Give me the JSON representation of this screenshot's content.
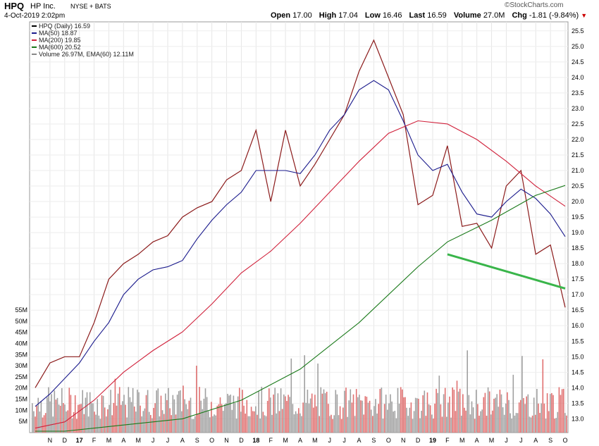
{
  "header": {
    "symbol": "HPQ",
    "company": "HP Inc.",
    "exchange": "NYSE + BATS",
    "datetime": "4-Oct-2019 2:02pm",
    "open_label": "Open",
    "open": "17.00",
    "high_label": "High",
    "high": "17.04",
    "low_label": "Low",
    "low": "16.46",
    "last_label": "Last",
    "last": "16.59",
    "volume_label": "Volume",
    "volume": "27.0M",
    "chg_label": "Chg",
    "chg": "-1.81 (-9.84%)",
    "brand": "©StockCharts.com"
  },
  "legend": [
    {
      "text": "HPQ (Daily) 16.59",
      "color": "#000000"
    },
    {
      "text": "MA(50) 18.87",
      "color": "#1a1a8c"
    },
    {
      "text": "MA(200) 19.85",
      "color": "#d0203a"
    },
    {
      "text": "MA(600) 20.52",
      "color": "#1a7a1a"
    },
    {
      "text": "Volume 26.97M, EMA(60) 12.11M",
      "color": "#888888"
    }
  ],
  "colors": {
    "price": "#8b1a1a",
    "ma50": "#1a1a8c",
    "ma200": "#d0203a",
    "ma600": "#1a7a1a",
    "trend": "#39b54a",
    "vol": "#a0a0a0",
    "vol_down": "#e07070"
  },
  "chart_data": {
    "type": "line",
    "price_axis": {
      "min": 12.6,
      "max": 25.7,
      "ticks": [
        "13.0",
        "13.5",
        "14.0",
        "14.5",
        "15.0",
        "15.5",
        "16.0",
        "16.5",
        "17.0",
        "17.5",
        "18.0",
        "18.5",
        "19.0",
        "19.5",
        "20.0",
        "20.5",
        "21.0",
        "21.5",
        "22.0",
        "22.5",
        "23.0",
        "23.5",
        "24.0",
        "24.5",
        "25.0",
        "25.5"
      ]
    },
    "volume_axis": {
      "min": 0,
      "max": 55,
      "ticks": [
        "5M",
        "10M",
        "15M",
        "20M",
        "25M",
        "30M",
        "35M",
        "40M",
        "45M",
        "50M",
        "55M"
      ]
    },
    "x_labels": [
      "N",
      "D",
      "17",
      "F",
      "M",
      "A",
      "M",
      "J",
      "J",
      "A",
      "S",
      "O",
      "N",
      "D",
      "18",
      "F",
      "M",
      "A",
      "M",
      "J",
      "J",
      "A",
      "S",
      "O",
      "N",
      "D",
      "19",
      "F",
      "M",
      "A",
      "M",
      "J",
      "J",
      "A",
      "S",
      "O"
    ],
    "bold_labels": [
      "17",
      "18",
      "19"
    ],
    "x_dates": [
      "2016-11",
      "2016-12",
      "2017-01",
      "2017-02",
      "2017-03",
      "2017-04",
      "2017-05",
      "2017-06",
      "2017-07",
      "2017-08",
      "2017-09",
      "2017-10",
      "2017-11",
      "2017-12",
      "2018-01",
      "2018-02",
      "2018-03",
      "2018-04",
      "2018-05",
      "2018-06",
      "2018-07",
      "2018-08",
      "2018-09",
      "2018-10",
      "2018-11",
      "2018-12",
      "2019-01",
      "2019-02",
      "2019-03",
      "2019-04",
      "2019-05",
      "2019-06",
      "2019-07",
      "2019-08",
      "2019-09",
      "2019-10"
    ],
    "series": [
      {
        "name": "HPQ (Daily)",
        "key": "price",
        "points": [
          [
            "2016-10",
            14.0
          ],
          [
            "2016-11",
            14.8
          ],
          [
            "2016-12",
            15.0
          ],
          [
            "2017-01",
            15.0
          ],
          [
            "2017-02",
            16.1
          ],
          [
            "2017-03",
            17.5
          ],
          [
            "2017-04",
            18.0
          ],
          [
            "2017-05",
            18.3
          ],
          [
            "2017-06",
            18.7
          ],
          [
            "2017-07",
            18.9
          ],
          [
            "2017-08",
            19.5
          ],
          [
            "2017-09",
            19.8
          ],
          [
            "2017-10",
            20.0
          ],
          [
            "2017-11",
            20.7
          ],
          [
            "2017-12",
            21.0
          ],
          [
            "2018-01",
            22.3
          ],
          [
            "2018-02",
            20.0
          ],
          [
            "2018-03",
            22.3
          ],
          [
            "2018-04",
            20.5
          ],
          [
            "2018-05",
            21.2
          ],
          [
            "2018-06",
            22.0
          ],
          [
            "2018-07",
            22.8
          ],
          [
            "2018-08",
            24.2
          ],
          [
            "2018-09",
            25.2
          ],
          [
            "2018-10",
            24.0
          ],
          [
            "2018-11",
            22.8
          ],
          [
            "2018-12",
            19.9
          ],
          [
            "2019-01",
            20.2
          ],
          [
            "2019-02",
            21.8
          ],
          [
            "2019-03",
            19.2
          ],
          [
            "2019-04",
            19.3
          ],
          [
            "2019-05",
            18.5
          ],
          [
            "2019-06",
            20.5
          ],
          [
            "2019-07",
            21.0
          ],
          [
            "2019-08",
            18.3
          ],
          [
            "2019-09",
            18.6
          ],
          [
            "2019-10",
            16.59
          ]
        ]
      },
      {
        "name": "MA(50)",
        "key": "ma50",
        "points": [
          [
            "2016-10",
            13.4
          ],
          [
            "2016-11",
            13.8
          ],
          [
            "2016-12",
            14.3
          ],
          [
            "2017-01",
            14.8
          ],
          [
            "2017-02",
            15.5
          ],
          [
            "2017-03",
            16.1
          ],
          [
            "2017-04",
            17.0
          ],
          [
            "2017-05",
            17.5
          ],
          [
            "2017-06",
            17.8
          ],
          [
            "2017-07",
            17.9
          ],
          [
            "2017-08",
            18.1
          ],
          [
            "2017-09",
            18.8
          ],
          [
            "2017-10",
            19.4
          ],
          [
            "2017-11",
            19.9
          ],
          [
            "2017-12",
            20.3
          ],
          [
            "2018-01",
            21.0
          ],
          [
            "2018-02",
            21.0
          ],
          [
            "2018-03",
            21.0
          ],
          [
            "2018-04",
            20.9
          ],
          [
            "2018-05",
            21.5
          ],
          [
            "2018-06",
            22.3
          ],
          [
            "2018-07",
            22.8
          ],
          [
            "2018-08",
            23.6
          ],
          [
            "2018-09",
            23.9
          ],
          [
            "2018-10",
            23.6
          ],
          [
            "2018-11",
            22.6
          ],
          [
            "2018-12",
            21.5
          ],
          [
            "2019-01",
            21.0
          ],
          [
            "2019-02",
            21.2
          ],
          [
            "2019-03",
            20.3
          ],
          [
            "2019-04",
            19.6
          ],
          [
            "2019-05",
            19.5
          ],
          [
            "2019-06",
            20.0
          ],
          [
            "2019-07",
            20.4
          ],
          [
            "2019-08",
            20.1
          ],
          [
            "2019-09",
            19.6
          ],
          [
            "2019-10",
            18.87
          ]
        ]
      },
      {
        "name": "MA(200)",
        "key": "ma200",
        "points": [
          [
            "2016-10",
            12.7
          ],
          [
            "2016-12",
            12.9
          ],
          [
            "2017-02",
            13.6
          ],
          [
            "2017-04",
            14.5
          ],
          [
            "2017-06",
            15.2
          ],
          [
            "2017-08",
            15.8
          ],
          [
            "2017-10",
            16.7
          ],
          [
            "2017-12",
            17.7
          ],
          [
            "2018-02",
            18.4
          ],
          [
            "2018-04",
            19.3
          ],
          [
            "2018-06",
            20.3
          ],
          [
            "2018-08",
            21.3
          ],
          [
            "2018-10",
            22.2
          ],
          [
            "2018-12",
            22.6
          ],
          [
            "2019-02",
            22.5
          ],
          [
            "2019-04",
            22.0
          ],
          [
            "2019-06",
            21.3
          ],
          [
            "2019-08",
            20.5
          ],
          [
            "2019-10",
            19.85
          ]
        ]
      },
      {
        "name": "MA(600)",
        "key": "ma600",
        "points": [
          [
            "2016-10",
            12.6
          ],
          [
            "2016-12",
            12.6
          ],
          [
            "2017-04",
            12.8
          ],
          [
            "2017-08",
            13.0
          ],
          [
            "2017-12",
            13.6
          ],
          [
            "2018-04",
            14.6
          ],
          [
            "2018-08",
            16.1
          ],
          [
            "2018-12",
            17.9
          ],
          [
            "2019-02",
            18.7
          ],
          [
            "2019-05",
            19.4
          ],
          [
            "2019-08",
            20.2
          ],
          [
            "2019-10",
            20.52
          ]
        ]
      },
      {
        "name": "Trendline",
        "key": "trend",
        "points": [
          [
            "2019-02",
            18.3
          ],
          [
            "2019-10",
            17.2
          ]
        ]
      }
    ],
    "volume": {
      "avg": 12.11,
      "last": 26.97
    }
  }
}
